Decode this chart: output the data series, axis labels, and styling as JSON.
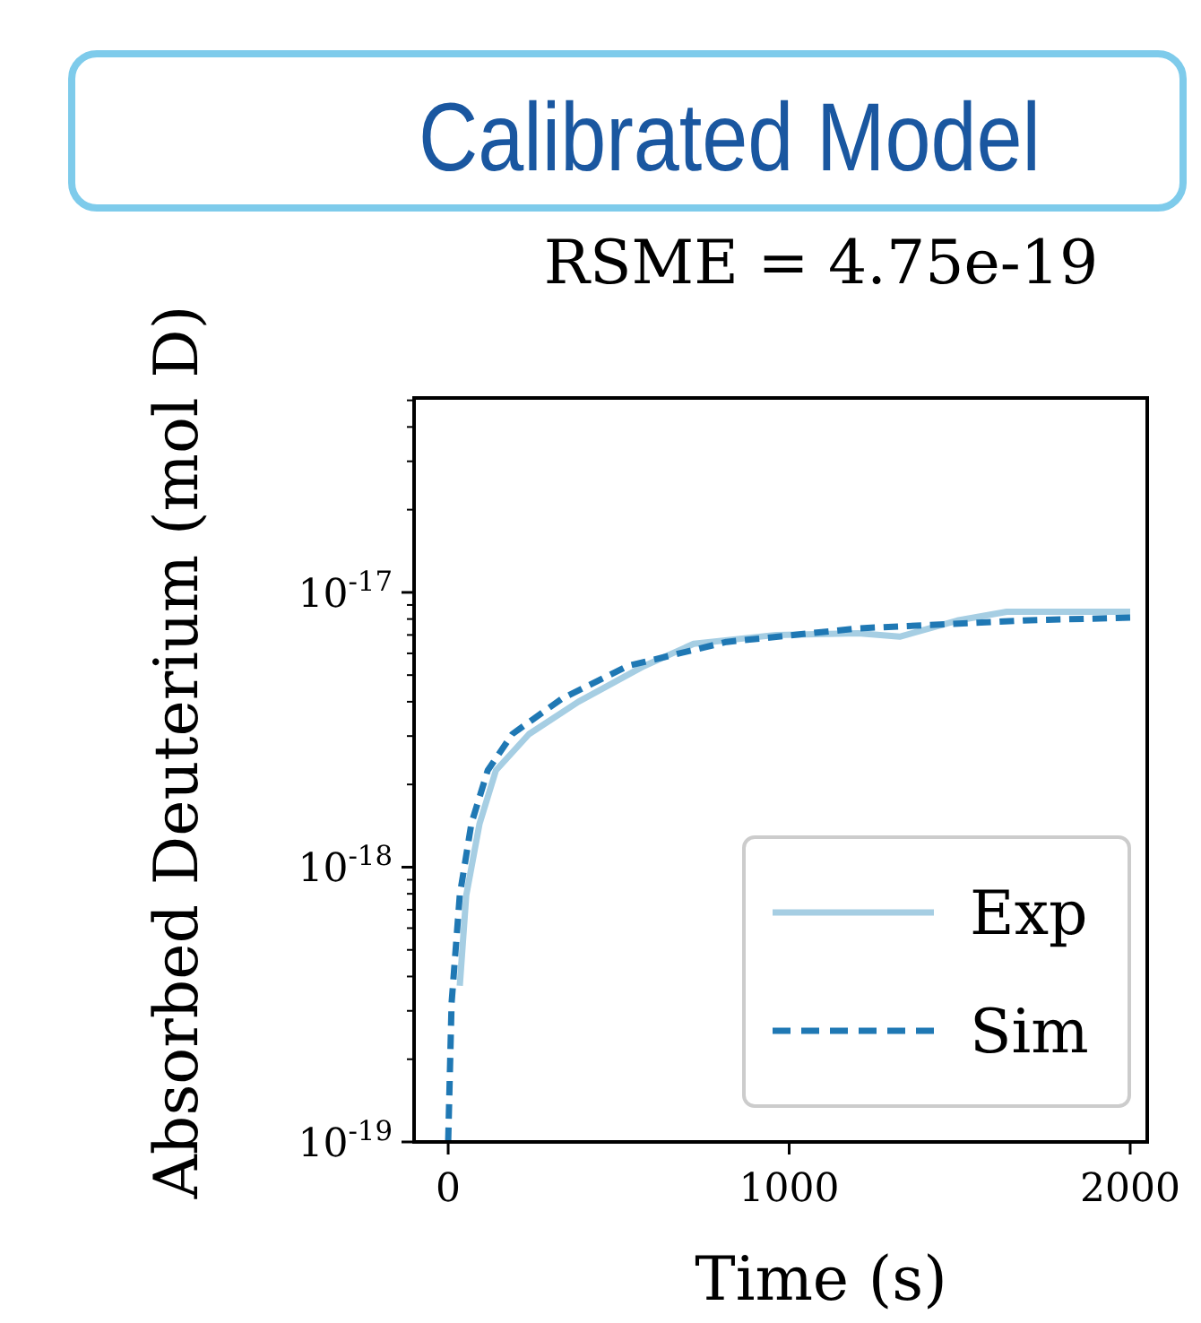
{
  "chart_data": {
    "type": "line",
    "title": "Calibrated Model",
    "subtitle": "RSME = 4.75e-19",
    "xlabel": "Time (s)",
    "ylabel": "Absorbed Deuterium (mol D)",
    "log": "y",
    "xlim": [
      -100,
      2050
    ],
    "xticks": [
      0,
      1000,
      2000
    ],
    "ylim": [
      1e-19,
      5.1e-17
    ],
    "yticks": [
      {
        "value": 1e-19,
        "label": "10$^{-19}$"
      },
      {
        "value": 2e-19,
        "label": null
      },
      {
        "value": 3e-19,
        "label": null
      },
      {
        "value": 4e-19,
        "label": null
      },
      {
        "value": 5e-19,
        "label": null
      },
      {
        "value": 6e-19,
        "label": null
      },
      {
        "value": 7e-19,
        "label": null
      },
      {
        "value": 8e-19,
        "label": null
      },
      {
        "value": 9e-19,
        "label": null
      },
      {
        "value": 1e-18,
        "label": "10$^{-18}$"
      },
      {
        "value": 2e-18,
        "label": null
      },
      {
        "value": 3e-18,
        "label": null
      },
      {
        "value": 4e-18,
        "label": null
      },
      {
        "value": 5e-18,
        "label": null
      },
      {
        "value": 6e-18,
        "label": null
      },
      {
        "value": 7e-18,
        "label": null
      },
      {
        "value": 8e-18,
        "label": null
      },
      {
        "value": 9e-18,
        "label": null
      },
      {
        "value": 1e-17,
        "label": "10$^{-17}$"
      },
      {
        "value": 2e-17,
        "label": null
      },
      {
        "value": 3e-17,
        "label": null
      },
      {
        "value": 4e-17,
        "label": null
      },
      {
        "value": 5e-17,
        "label": null
      }
    ],
    "grid": false,
    "legend": "bottom right",
    "series": [
      {
        "name": "Exp",
        "color": "#a6cee3",
        "line_style": "solid",
        "x": [
          34,
          53,
          92,
          140,
          237,
          382,
          575,
          720,
          961,
          1203,
          1324,
          1493,
          1638,
          1831,
          2000
        ],
        "values": [
          3.7e-19,
          7.9e-19,
          1.44e-18,
          2.25e-18,
          3.05e-18,
          4e-18,
          5.4e-18,
          6.5e-18,
          7e-18,
          7.1e-18,
          6.9e-18,
          7.9e-18,
          8.5e-18,
          8.5e-18,
          8.5e-18
        ]
      },
      {
        "name": "Sim",
        "color": "#1f78b4",
        "line_style": "dashed",
        "x": [
          0,
          10,
          34,
          68,
          116,
          188,
          333,
          527,
          816,
          1203,
          1686,
          2000
        ],
        "values": [
          1e-19,
          3.2e-19,
          7.9e-19,
          1.44e-18,
          2.25e-18,
          3.05e-18,
          4.1e-18,
          5.4e-18,
          6.6e-18,
          7.4e-18,
          7.9e-18,
          8.1e-18
        ]
      }
    ]
  }
}
